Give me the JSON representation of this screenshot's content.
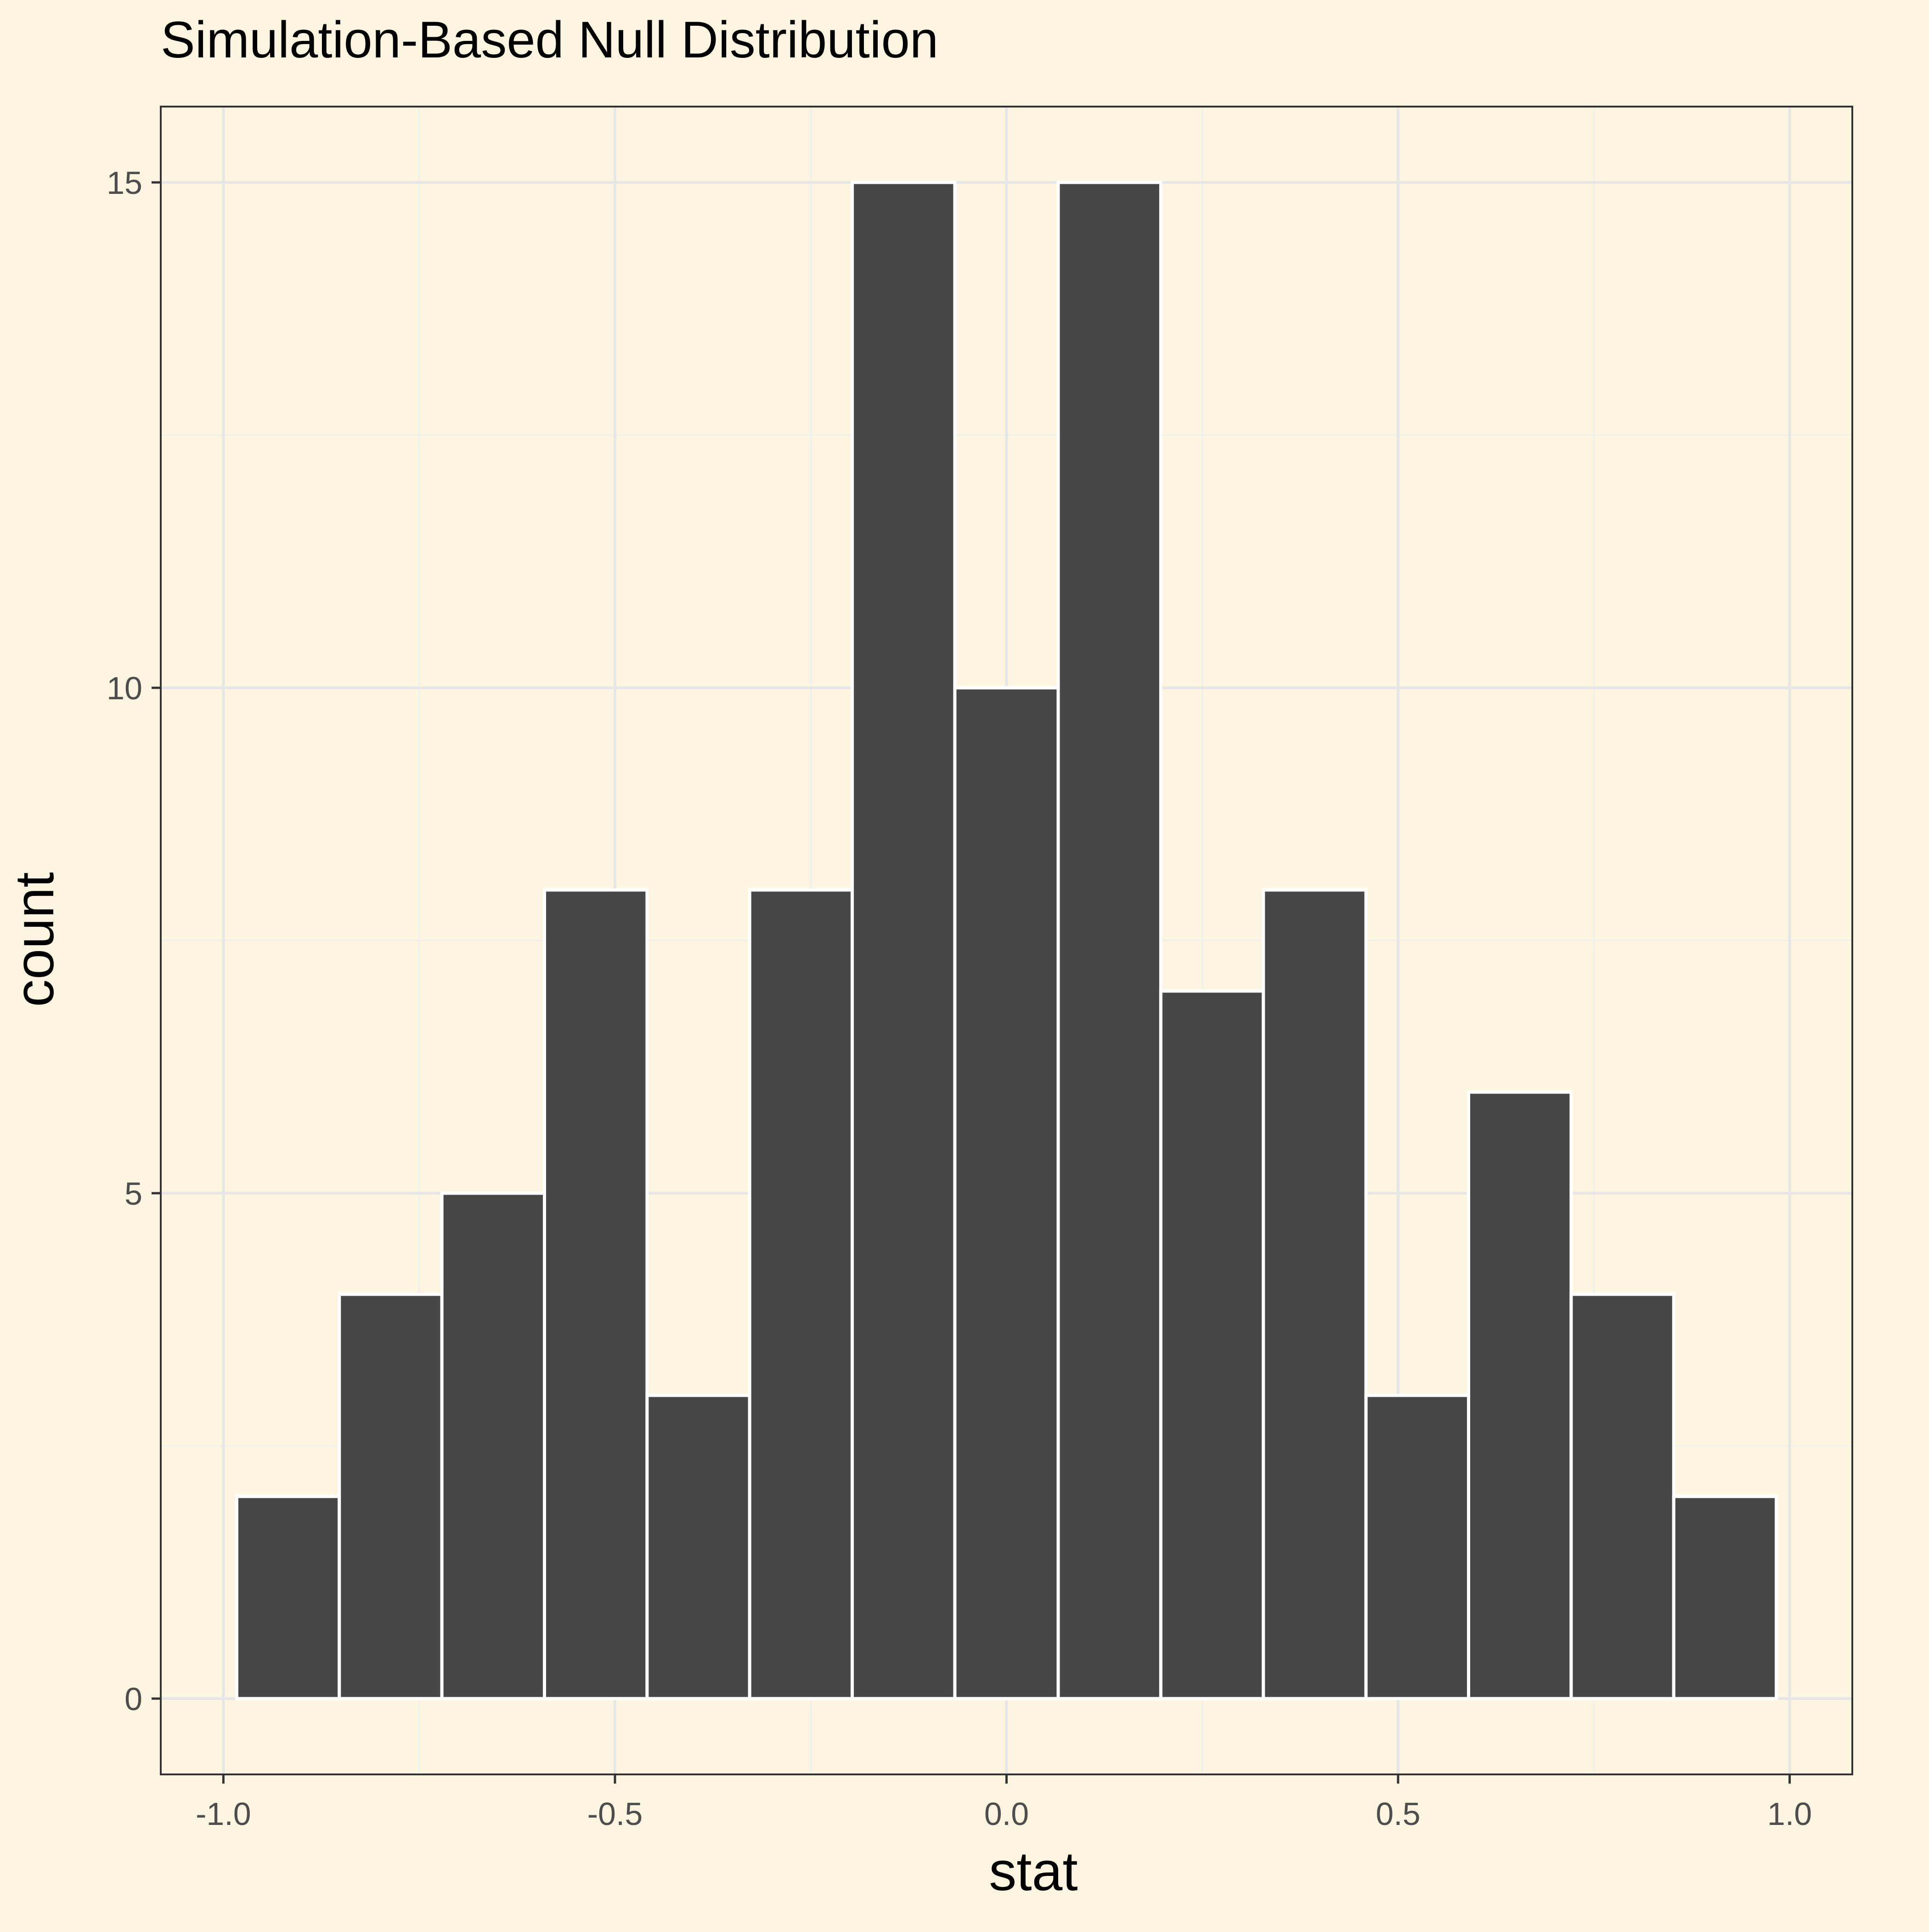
{
  "chart_data": {
    "type": "bar",
    "title": "Simulation-Based Null Distribution",
    "xlabel": "stat",
    "ylabel": "count",
    "bins": [
      {
        "x_min": -0.983,
        "x_max": -0.852,
        "count": 2
      },
      {
        "x_min": -0.852,
        "x_max": -0.721,
        "count": 4
      },
      {
        "x_min": -0.721,
        "x_max": -0.59,
        "count": 5
      },
      {
        "x_min": -0.59,
        "x_max": -0.459,
        "count": 8
      },
      {
        "x_min": -0.459,
        "x_max": -0.328,
        "count": 3
      },
      {
        "x_min": -0.328,
        "x_max": -0.197,
        "count": 8
      },
      {
        "x_min": -0.197,
        "x_max": -0.066,
        "count": 15
      },
      {
        "x_min": -0.066,
        "x_max": 0.066,
        "count": 10
      },
      {
        "x_min": 0.066,
        "x_max": 0.197,
        "count": 15
      },
      {
        "x_min": 0.197,
        "x_max": 0.328,
        "count": 7
      },
      {
        "x_min": 0.328,
        "x_max": 0.459,
        "count": 8
      },
      {
        "x_min": 0.459,
        "x_max": 0.59,
        "count": 3
      },
      {
        "x_min": 0.59,
        "x_max": 0.721,
        "count": 6
      },
      {
        "x_min": 0.721,
        "x_max": 0.852,
        "count": 4
      },
      {
        "x_min": 0.852,
        "x_max": 0.983,
        "count": 2
      }
    ],
    "xlim": [
      -1.08,
      1.08
    ],
    "ylim": [
      -0.75,
      15.75
    ],
    "x_ticks": [
      -1.0,
      -0.5,
      0.0,
      0.5,
      1.0
    ],
    "x_tick_labels": [
      "-1.0",
      "-0.5",
      "0.0",
      "0.5",
      "1.0"
    ],
    "y_ticks": [
      0,
      5,
      10,
      15
    ],
    "y_tick_labels": [
      "0",
      "5",
      "10",
      "15"
    ],
    "grid": true,
    "legend": "none",
    "colors": {
      "background": "#fdf5df",
      "bar_fill": "#474747",
      "bar_outline": "#ffffff",
      "grid_major": "#e6e6e6",
      "grid_minor": "#eeeeee",
      "axis_text": "#4d4d4d",
      "title_text": "#000000"
    }
  }
}
